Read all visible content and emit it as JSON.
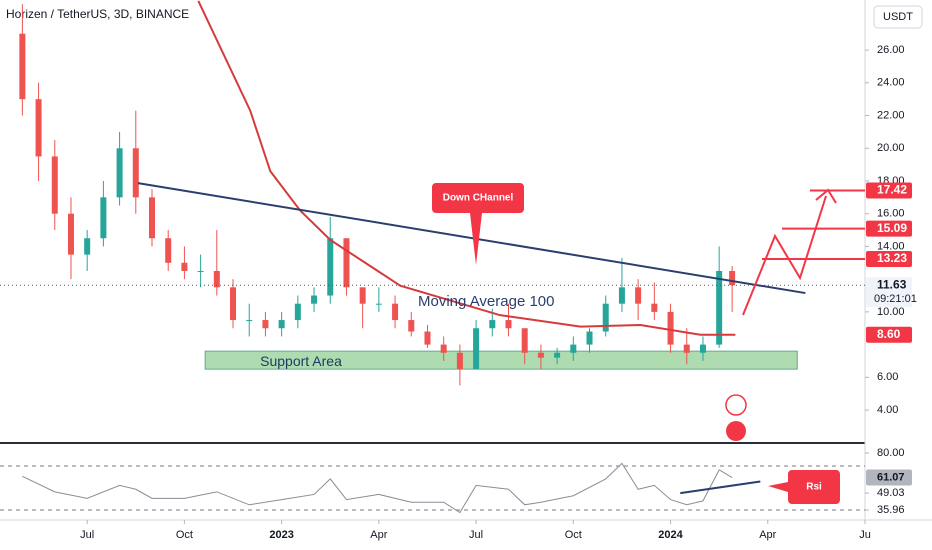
{
  "chart_data": [
    {
      "type": "candlestick",
      "title": "Horizen / TetherUS, 3D, BINANCE",
      "unit_button": "USDT",
      "xlim": [
        3.31,
        30.0
      ],
      "ylim": [
        2.17,
        29.06
      ],
      "yticks": [
        {
          "value": 26,
          "label": "26.00"
        },
        {
          "value": 24,
          "label": "24.00"
        },
        {
          "value": 22,
          "label": "22.00"
        },
        {
          "value": 20,
          "label": "20.00"
        },
        {
          "value": 18,
          "label": "18.00"
        },
        {
          "value": 16,
          "label": "16.00"
        },
        {
          "value": 14,
          "label": "14.00"
        },
        {
          "value": 10,
          "label": "10.00"
        },
        {
          "value": 6,
          "label": "6.00"
        },
        {
          "value": 4,
          "label": "4.00"
        }
      ],
      "up_color": "#26a69a",
      "down_color": "#ef5350",
      "x": [
        4.0,
        4.5,
        5.0,
        5.5,
        6.0,
        6.5,
        7.0,
        7.5,
        8.0,
        8.5,
        9.0,
        9.5,
        10.0,
        10.5,
        11.0,
        11.5,
        12.0,
        12.5,
        13.0,
        13.5,
        14.0,
        14.5,
        15.0,
        15.5,
        16.0,
        16.5,
        17.0,
        17.5,
        18.0,
        18.5,
        19.0,
        19.5,
        20.0,
        20.5,
        21.0,
        21.5,
        22.0,
        22.5,
        23.0,
        23.5,
        24.0,
        24.5,
        25.0,
        25.5,
        25.9
      ],
      "open": [
        27,
        23,
        19.5,
        16,
        13.5,
        14.5,
        17,
        20,
        17,
        14.5,
        13,
        12.5,
        12.5,
        11.5,
        9.5,
        9.5,
        9,
        9.5,
        10.5,
        11,
        14.5,
        11.5,
        10.5,
        10.5,
        9.5,
        8.8,
        8,
        7.5,
        6.5,
        9,
        9.5,
        9,
        7.5,
        7.2,
        7.5,
        8,
        8.8,
        10.5,
        11.5,
        10.5,
        10,
        8,
        7.5,
        8,
        12.5
      ],
      "high": [
        28.8,
        24,
        20.5,
        17,
        15,
        18,
        21,
        22.3,
        17.5,
        15,
        14,
        13.5,
        15,
        12,
        10.5,
        10,
        10,
        11,
        11.5,
        15.8,
        14.5,
        11.5,
        11.5,
        11,
        10,
        9.2,
        8.5,
        8,
        9.5,
        10.2,
        10.5,
        9,
        8,
        7.8,
        8.5,
        9,
        11,
        13.3,
        12,
        11.8,
        10.5,
        9,
        8.5,
        14,
        12.8
      ],
      "low": [
        22,
        18,
        15,
        12,
        12.5,
        14,
        16.5,
        16,
        14,
        12.5,
        12,
        11.5,
        11,
        9,
        8.5,
        8.5,
        8.5,
        9,
        10,
        10.5,
        11,
        9,
        10,
        9,
        8.5,
        7.8,
        7,
        5.5,
        6.5,
        8.5,
        8.5,
        6.8,
        6.5,
        6.8,
        7,
        7.5,
        8.5,
        10,
        9.5,
        9.5,
        7.5,
        6.8,
        7,
        7.8,
        10
      ],
      "close": [
        23,
        19.5,
        16,
        13.5,
        14.5,
        17,
        20,
        17,
        14.5,
        13,
        12.5,
        12.5,
        11.5,
        9.5,
        9.5,
        9,
        9.5,
        10.5,
        11,
        14.5,
        11.5,
        10.5,
        10.5,
        9.5,
        8.8,
        8,
        7.5,
        6.5,
        9,
        9.5,
        9,
        7.5,
        7.2,
        7.5,
        8,
        8.8,
        10.5,
        11.5,
        10.5,
        10,
        8,
        7.5,
        8,
        12.5,
        11.63
      ],
      "series": [
        {
          "name": "Moving Average 100",
          "color": "#d63a3a",
          "x": [
            9.43,
            11.03,
            11.65,
            12.57,
            13.5,
            15.66,
            18.74,
            21.22,
            23.07,
            24.92,
            26.0
          ],
          "values": [
            29,
            22.3,
            18.6,
            16.2,
            14.4,
            11.6,
            9.8,
            9.1,
            9.2,
            8.6,
            8.6
          ]
        }
      ],
      "trendline": {
        "color": "#2a3f6e",
        "x": [
          7.57,
          28.16
        ],
        "values": [
          17.87,
          11.15
        ]
      },
      "support_area": {
        "label": "Support Area",
        "x": [
          9.64,
          27.91
        ],
        "range": [
          6.5,
          7.6
        ]
      },
      "callout": "Down CHannel",
      "price_labels": [
        {
          "value": 17.42,
          "label": "17.42",
          "color": "#f23645"
        },
        {
          "value": 15.09,
          "label": "15.09",
          "color": "#f23645"
        },
        {
          "value": 13.23,
          "label": "13.23",
          "color": "#f23645"
        },
        {
          "value": 11.63,
          "label": "11.63",
          "color": "#f0f3fa"
        },
        {
          "value": 8.6,
          "label": "8.60",
          "color": "#f23645"
        }
      ],
      "countdown": "09:21:01"
    },
    {
      "type": "line",
      "xlim": [
        3.31,
        30.0
      ],
      "xticks": [
        {
          "value": 6,
          "label": "Jul"
        },
        {
          "value": 9,
          "label": "Oct"
        },
        {
          "value": 12,
          "label": "2023"
        },
        {
          "value": 15,
          "label": "Apr"
        },
        {
          "value": 18,
          "label": "Jul"
        },
        {
          "value": 21,
          "label": "Oct"
        },
        {
          "value": 24,
          "label": "2024"
        },
        {
          "value": 27,
          "label": "Apr"
        },
        {
          "value": 30,
          "label": "Ju"
        }
      ],
      "ylim": [
        26.7,
        86.2
      ],
      "yticks": [
        {
          "value": 80,
          "label": "80.00"
        },
        {
          "value": 49.03,
          "label": "49.03"
        },
        {
          "value": 35.96,
          "label": "35.96"
        }
      ],
      "bands": [
        70,
        36
      ],
      "series": [
        {
          "name": "RSI",
          "color": "#8a8d96",
          "x": [
            4.0,
            5.0,
            6.0,
            7.0,
            7.5,
            8.0,
            9.0,
            10.0,
            11.0,
            12.0,
            13.0,
            13.5,
            14.0,
            15.0,
            16.0,
            17.0,
            17.5,
            18.0,
            19.0,
            19.5,
            20.0,
            21.0,
            22.0,
            22.5,
            23.0,
            23.5,
            24.0,
            24.5,
            25.0,
            25.5,
            25.9
          ],
          "values": [
            62,
            50,
            45,
            55,
            52,
            45,
            45,
            50,
            40,
            44,
            48,
            60,
            44,
            48,
            42,
            42,
            34,
            55,
            52,
            40,
            42,
            47,
            60,
            72,
            52,
            55,
            44,
            40,
            43,
            67,
            61.07
          ]
        }
      ],
      "current_label": {
        "value": 61.07,
        "label": "61.07"
      },
      "trendline": {
        "color": "#2a3f6e",
        "x": [
          24.3,
          26.77
        ],
        "values": [
          49,
          58
        ]
      },
      "callout": "Rsi"
    }
  ]
}
